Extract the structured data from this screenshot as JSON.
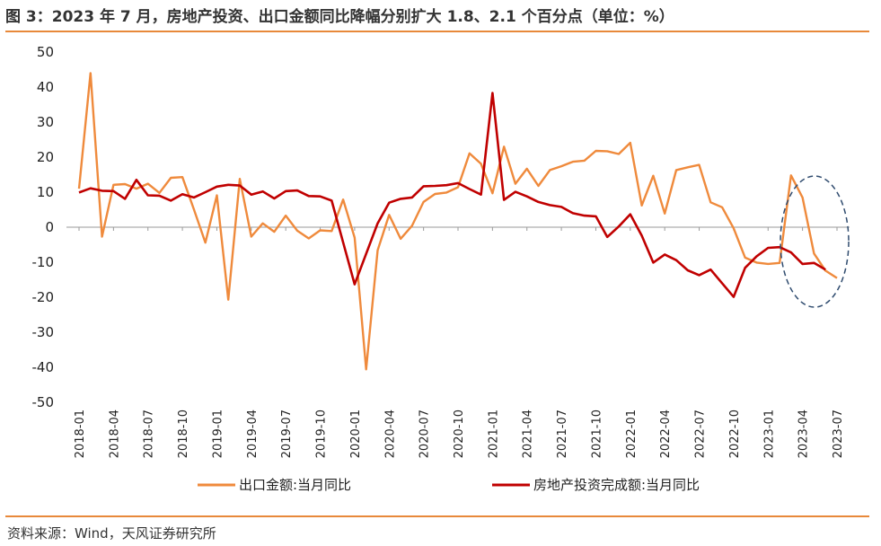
{
  "figure": {
    "title": "图 3：2023 年 7 月，房地产投资、出口金额同比降幅分别扩大 1.8、2.1 个百分点（单位：%）",
    "source": "资料来源：Wind，天风证券研究所"
  },
  "colors": {
    "export": "#ef8a3c",
    "realestate": "#c00000",
    "rule": "#e8893a",
    "highlight_ellipse": "#2f4b6e"
  },
  "chart_data": {
    "type": "line",
    "title": "",
    "xlabel": "",
    "ylabel": "",
    "ylim": [
      -50,
      50
    ],
    "yticks": [
      -50,
      -40,
      -30,
      -20,
      -10,
      0,
      10,
      20,
      30,
      40,
      50
    ],
    "x_tick_labels": [
      "2018-01",
      "2018-04",
      "2018-07",
      "2018-10",
      "2019-01",
      "2019-04",
      "2019-07",
      "2019-10",
      "2020-01",
      "2020-04",
      "2020-07",
      "2020-10",
      "2021-01",
      "2021-04",
      "2021-07",
      "2021-10",
      "2022-01",
      "2022-04",
      "2022-07",
      "2022-10",
      "2023-01",
      "2023-04",
      "2023-07"
    ],
    "grid": false,
    "legend_position": "bottom",
    "x": [
      "2018-01",
      "2018-02",
      "2018-03",
      "2018-04",
      "2018-05",
      "2018-06",
      "2018-07",
      "2018-08",
      "2018-09",
      "2018-10",
      "2018-11",
      "2018-12",
      "2019-01",
      "2019-02",
      "2019-03",
      "2019-04",
      "2019-05",
      "2019-06",
      "2019-07",
      "2019-08",
      "2019-09",
      "2019-10",
      "2019-11",
      "2019-12",
      "2020-01",
      "2020-02",
      "2020-03",
      "2020-04",
      "2020-05",
      "2020-06",
      "2020-07",
      "2020-08",
      "2020-09",
      "2020-10",
      "2020-11",
      "2020-12",
      "2021-01",
      "2021-02",
      "2021-03",
      "2021-04",
      "2021-05",
      "2021-06",
      "2021-07",
      "2021-08",
      "2021-09",
      "2021-10",
      "2021-11",
      "2021-12",
      "2022-01",
      "2022-02",
      "2022-03",
      "2022-04",
      "2022-05",
      "2022-06",
      "2022-07",
      "2022-08",
      "2022-09",
      "2022-10",
      "2022-11",
      "2022-12",
      "2023-01",
      "2023-02",
      "2023-03",
      "2023-04",
      "2023-05",
      "2023-06",
      "2023-07"
    ],
    "series": [
      {
        "name": "出口金额:当月同比",
        "values": [
          11,
          44,
          -2.7,
          12.1,
          12.3,
          11,
          12.4,
          9.8,
          14.1,
          14.3,
          5.1,
          -4.4,
          9.1,
          -20.7,
          13.8,
          -2.7,
          1.1,
          -1.3,
          3.3,
          -1,
          -3.2,
          -0.9,
          -1.1,
          7.9,
          -3,
          -40.6,
          -6.6,
          3.5,
          -3.3,
          0.4,
          7.2,
          9.5,
          9.9,
          11.4,
          21.1,
          18.1,
          9.7,
          23,
          12.4,
          16.7,
          11.8,
          16.3,
          17.4,
          18.7,
          19,
          21.8,
          21.7,
          20.9,
          24.1,
          6.2,
          14.7,
          3.9,
          16.3,
          17.1,
          17.8,
          7.1,
          5.7,
          -0.3,
          -8.7,
          -10.1,
          -10.5,
          -10.2,
          14.8,
          8.5,
          -7.5,
          -12.4,
          -14.5
        ]
      },
      {
        "name": "房地产投资完成额:当月同比",
        "values": [
          9.9,
          11.1,
          10.4,
          10.3,
          8.1,
          13.5,
          9.1,
          9,
          7.6,
          9.4,
          8.5,
          10,
          11.6,
          12.1,
          11.9,
          9.3,
          10.2,
          8.2,
          10.3,
          10.5,
          8.9,
          8.8,
          7.6,
          null,
          -16.3,
          null,
          1.1,
          7,
          8.1,
          8.5,
          11.7,
          11.8,
          12,
          12.6,
          10.9,
          9.3,
          38.3,
          7.8,
          10.1,
          8.8,
          7.2,
          6.3,
          5.8,
          4,
          3.3,
          3.1,
          -2.8,
          0.2,
          3.7,
          -2.4,
          -10.1,
          -7.8,
          -9.4,
          -12.3,
          -13.7,
          -12.1,
          -16,
          -19.9,
          -11.6,
          -8.3,
          -5.9,
          -5.7,
          -7.2,
          -10.5,
          -10.2,
          -12.1,
          null
        ]
      }
    ],
    "legend": [
      "出口金额:当月同比",
      "房地产投资完成额:当月同比"
    ]
  }
}
